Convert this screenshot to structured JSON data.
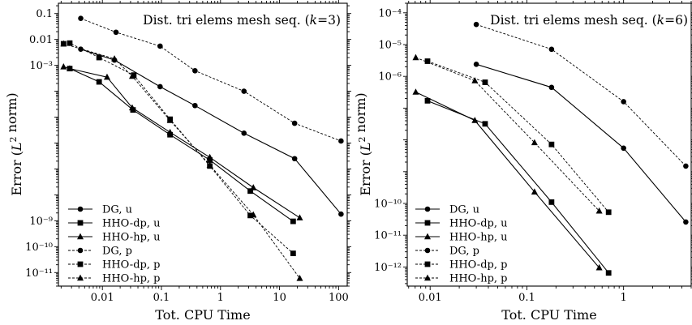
{
  "chart_data": [
    {
      "type": "line",
      "title": "Dist. tri elems mesh seq. (k=3)",
      "xlabel": "Tot. CPU Time",
      "ylabel": "Error (L2 norm)",
      "xscale": "log",
      "yscale": "log",
      "xlim": [
        0.0018,
        140
      ],
      "ylim": [
        3e-12,
        0.25
      ],
      "xticks": [
        {
          "v": 0.01,
          "label": "0.01"
        },
        {
          "v": 0.1,
          "label": "0.1"
        },
        {
          "v": 1,
          "label": "1"
        },
        {
          "v": 10,
          "label": "10"
        },
        {
          "v": 100,
          "label": "100"
        }
      ],
      "yticks": [
        {
          "v": 0.1,
          "label": "0.1"
        },
        {
          "v": 0.01,
          "label": "0.01"
        },
        {
          "v": 0.001,
          "label": "10⁻³"
        },
        {
          "v": 1e-09,
          "label": "10⁻⁹"
        },
        {
          "v": 1e-10,
          "label": "10⁻¹⁰"
        },
        {
          "v": 1e-11,
          "label": "10⁻¹¹"
        }
      ],
      "legend": "lower-left",
      "series": [
        {
          "name": "DG, u",
          "marker": "circle",
          "dashed": false,
          "points": [
            [
              0.0043,
              0.0042
            ],
            [
              0.016,
              0.0016
            ],
            [
              0.095,
              0.00015
            ],
            [
              0.37,
              2.8e-05
            ],
            [
              2.5,
              2.4e-06
            ],
            [
              18,
              2.5e-07
            ],
            [
              110,
              1.8e-09
            ]
          ]
        },
        {
          "name": "HHO-dp, u",
          "marker": "square",
          "dashed": false,
          "points": [
            [
              0.0028,
              0.00075
            ],
            [
              0.0088,
              0.00023
            ],
            [
              0.033,
              1.9e-05
            ],
            [
              0.14,
              2.1e-06
            ],
            [
              0.66,
              2.2e-07
            ],
            [
              3.2,
              1.4e-08
            ],
            [
              17,
              9.5e-10
            ]
          ]
        },
        {
          "name": "HHO-hp, u",
          "marker": "triangle",
          "dashed": false,
          "points": [
            [
              0.0022,
              0.00088
            ],
            [
              0.0028,
              0.00075
            ],
            [
              0.012,
              0.00035
            ],
            [
              0.032,
              2.3e-05
            ],
            [
              0.14,
              2.6e-06
            ],
            [
              0.66,
              2.8e-07
            ],
            [
              3.6,
              1.9e-08
            ],
            [
              22,
              1.3e-09
            ]
          ]
        },
        {
          "name": "DG, p",
          "marker": "circle",
          "dashed": true,
          "points": [
            [
              0.0043,
              0.065
            ],
            [
              0.017,
              0.019
            ],
            [
              0.095,
              0.0055
            ],
            [
              0.37,
              0.00062
            ],
            [
              2.5,
              0.0001
            ],
            [
              18,
              5.8e-06
            ],
            [
              110,
              1.2e-06
            ]
          ]
        },
        {
          "name": "HHO-dp, p",
          "marker": "square",
          "dashed": true,
          "points": [
            [
              0.0022,
              0.0068
            ],
            [
              0.0028,
              0.0072
            ],
            [
              0.0088,
              0.002
            ],
            [
              0.034,
              0.00042
            ],
            [
              0.14,
              8.3e-06
            ],
            [
              0.66,
              1.3e-07
            ],
            [
              3.2,
              1.6e-09
            ],
            [
              17,
              5.5e-11
            ]
          ]
        },
        {
          "name": "HHO-hp, p",
          "marker": "triangle",
          "dashed": true,
          "points": [
            [
              0.0022,
              0.0068
            ],
            [
              0.016,
              0.0018
            ],
            [
              0.032,
              0.00038
            ],
            [
              0.14,
              7.5e-06
            ],
            [
              0.66,
              1.4e-07
            ],
            [
              3.6,
              1.7e-09
            ],
            [
              22,
              6e-12
            ]
          ]
        }
      ]
    },
    {
      "type": "line",
      "title": "Dist. tri elems mesh seq. (k=6)",
      "xlabel": "Tot. CPU Time",
      "ylabel": "Error (L2 norm)",
      "xscale": "log",
      "yscale": "log",
      "xlim": [
        0.0058,
        5.0
      ],
      "ylim": [
        2.5e-13,
        0.0002
      ],
      "xticks": [
        {
          "v": 0.01,
          "label": "0.01"
        },
        {
          "v": 0.1,
          "label": "0.1"
        },
        {
          "v": 1,
          "label": "1"
        }
      ],
      "yticks": [
        {
          "v": 0.0001,
          "label": "10⁻⁴"
        },
        {
          "v": 1e-05,
          "label": "10⁻⁵"
        },
        {
          "v": 1e-06,
          "label": "10⁻⁶"
        },
        {
          "v": 1e-10,
          "label": "10⁻¹⁰"
        },
        {
          "v": 1e-11,
          "label": "10⁻¹¹"
        },
        {
          "v": 1e-12,
          "label": "10⁻¹²"
        }
      ],
      "legend": "lower-left",
      "series": [
        {
          "name": "DG, u",
          "marker": "circle",
          "dashed": false,
          "points": [
            [
              0.03,
              2.4e-06
            ],
            [
              0.18,
              4.5e-07
            ],
            [
              1.0,
              5.5e-09
            ],
            [
              4.4,
              2.6e-11
            ]
          ]
        },
        {
          "name": "HHO-dp, u",
          "marker": "square",
          "dashed": false,
          "points": [
            [
              0.0094,
              1.7e-07
            ],
            [
              0.037,
              3.2e-08
            ],
            [
              0.18,
              1.1e-10
            ],
            [
              0.7,
              6.5e-13
            ]
          ]
        },
        {
          "name": "HHO-hp, u",
          "marker": "triangle",
          "dashed": false,
          "points": [
            [
              0.0071,
              3.2e-07
            ],
            [
              0.029,
              4.1e-08
            ],
            [
              0.12,
              2.3e-10
            ],
            [
              0.56,
              9.5e-13
            ]
          ]
        },
        {
          "name": "DG, p",
          "marker": "circle",
          "dashed": true,
          "points": [
            [
              0.03,
              4.3e-05
            ],
            [
              0.18,
              7.1e-06
            ],
            [
              1.0,
              1.6e-07
            ],
            [
              4.4,
              1.5e-09
            ]
          ]
        },
        {
          "name": "HHO-dp, p",
          "marker": "square",
          "dashed": true,
          "points": [
            [
              0.0094,
              3e-06
            ],
            [
              0.037,
              6.5e-07
            ],
            [
              0.18,
              7.2e-09
            ],
            [
              0.7,
              5.3e-11
            ]
          ]
        },
        {
          "name": "HHO-hp, p",
          "marker": "triangle",
          "dashed": true,
          "points": [
            [
              0.0071,
              3.9e-06
            ],
            [
              0.029,
              7.3e-07
            ],
            [
              0.12,
              8.2e-09
            ],
            [
              0.56,
              5.8e-11
            ]
          ]
        }
      ]
    }
  ]
}
